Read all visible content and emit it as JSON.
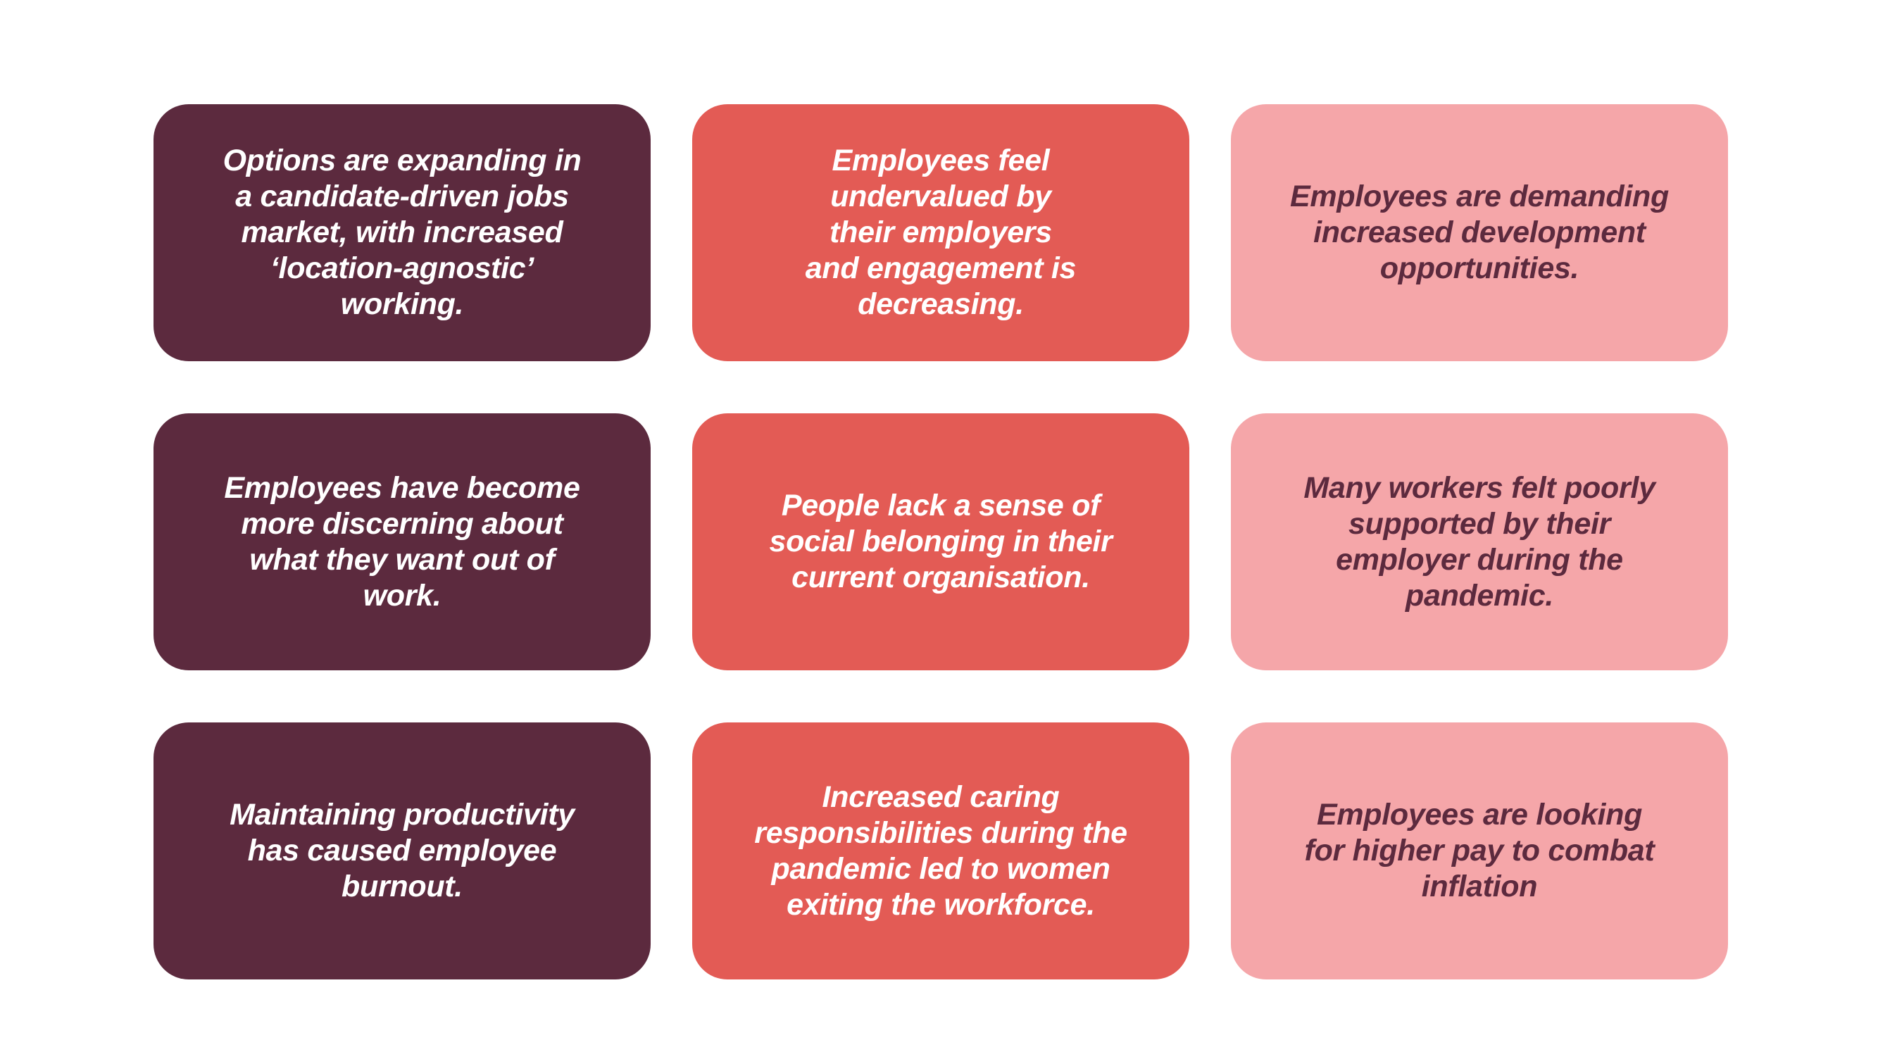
{
  "colors": {
    "dark_plum": "#5c2a3e",
    "coral": "#e35b55",
    "light_pink": "#f5a6a9",
    "text_light": "#ffffff",
    "text_dark": "#5c2a3e"
  },
  "cards": [
    {
      "text": "Options are expanding in\na candidate-driven jobs\nmarket, with increased\n‘location-agnostic’\nworking."
    },
    {
      "text": "Employees feel\nundervalued by\ntheir employers\nand engagement is\ndecreasing."
    },
    {
      "text": "Employees are demanding\nincreased development\nopportunities."
    },
    {
      "text": "Employees have become\nmore discerning about\nwhat they want out of\nwork."
    },
    {
      "text": "People lack a sense of\nsocial belonging in their\ncurrent organisation."
    },
    {
      "text": "Many workers felt poorly\nsupported by their\nemployer during the\npandemic."
    },
    {
      "text": "Maintaining productivity\nhas caused employee\nburnout."
    },
    {
      "text": "Increased caring\nresponsibilities during the\npandemic led to women\nexiting the workforce."
    },
    {
      "text": "Employees are looking\nfor higher pay to combat\ninflation"
    }
  ]
}
